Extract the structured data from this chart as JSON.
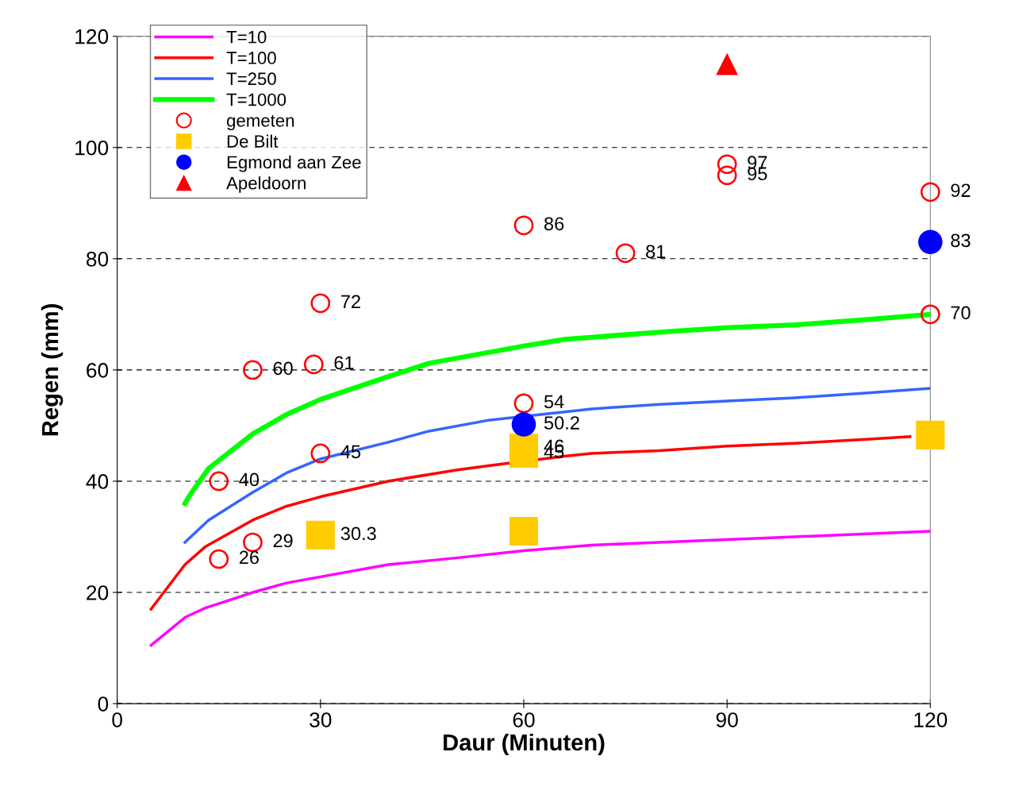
{
  "chart_data": {
    "type": "line",
    "xlabel": "Daur (Minuten)",
    "ylabel": "Regen (mm)",
    "xlim": [
      0,
      120
    ],
    "xticks": [
      0,
      30,
      60,
      90,
      120
    ],
    "ylim": [
      0,
      120
    ],
    "yticks": [
      0,
      20,
      40,
      60,
      80,
      100,
      120
    ],
    "grid": "y",
    "legend": "top left",
    "marker": "none",
    "line_style": "solid",
    "series": [
      {
        "name": "T=10",
        "color": "#ff00ff",
        "x": [
          5,
          7.5,
          10,
          13,
          15,
          20,
          25,
          30,
          40,
          50,
          60,
          70,
          80,
          90,
          100,
          110,
          120
        ],
        "values": [
          10.5,
          13,
          15.5,
          17.2,
          18,
          20,
          21.7,
          22.8,
          25,
          26.2,
          27.5,
          28.5,
          29,
          29.5,
          30,
          30.5,
          31
        ]
      },
      {
        "name": "T=100",
        "color": "#ff0000",
        "x": [
          5,
          7.5,
          10,
          13,
          20,
          25,
          30,
          40,
          50,
          55,
          66,
          70,
          80,
          90,
          100,
          110,
          117
        ],
        "values": [
          17,
          21,
          25,
          28.2,
          33,
          35.5,
          37.2,
          40,
          42,
          42.8,
          44.5,
          45,
          45.5,
          46.3,
          46.8,
          47.5,
          48
        ]
      },
      {
        "name": "T=250",
        "color": "#3366ff",
        "x": [
          10,
          13.5,
          20,
          25,
          30,
          40,
          46,
          55,
          70,
          80,
          90,
          100,
          110,
          120
        ],
        "values": [
          29,
          33,
          38,
          41.5,
          44,
          47,
          49,
          51,
          53,
          53.8,
          54.4,
          55,
          55.8,
          56.7
        ]
      },
      {
        "name": "T=1000",
        "color": "#00ff00",
        "x": [
          10,
          11,
          13.5,
          20,
          25,
          30,
          40,
          46,
          55,
          60,
          66,
          80,
          90,
          100,
          110,
          120
        ],
        "values": [
          36,
          38,
          42.3,
          48.5,
          52,
          54.7,
          58.8,
          61.2,
          63.2,
          64.3,
          65.5,
          66.8,
          67.6,
          68.1,
          69,
          70
        ]
      },
      {
        "name": "gemeten",
        "type": "scatter",
        "marker": "circle",
        "color": "#ff0000",
        "x": [
          15,
          20,
          15,
          20,
          29,
          30,
          30,
          60,
          60,
          75,
          90,
          90,
          120,
          120
        ],
        "values": [
          26,
          29,
          40,
          60,
          61,
          72,
          45,
          54,
          86,
          81,
          97,
          95,
          92,
          70
        ],
        "value_labels": [
          "26",
          "29",
          "40",
          "60",
          "61",
          "72",
          "45",
          "54",
          "86",
          "81",
          "97",
          "95",
          "92",
          "70"
        ]
      },
      {
        "name": "De Bilt",
        "type": "scatter",
        "marker": "square",
        "color": "#ffcc00",
        "x": [
          30,
          60,
          60,
          60,
          120
        ],
        "values": [
          30.3,
          46,
          45,
          31,
          48.3
        ],
        "value_labels": [
          "30.3",
          "46",
          "45",
          null,
          null
        ]
      },
      {
        "name": "Egmond aan Zee",
        "type": "scatter",
        "marker": "circle",
        "color": "#0000ff",
        "x": [
          60,
          120
        ],
        "values": [
          50.2,
          83
        ],
        "value_labels": [
          "50.2",
          "83"
        ]
      },
      {
        "name": "Apeldoorn",
        "type": "scatter",
        "marker": "triangle",
        "color": "#ff0000",
        "x": [
          90
        ],
        "values": [
          115
        ],
        "value_labels": [
          null
        ]
      }
    ]
  }
}
